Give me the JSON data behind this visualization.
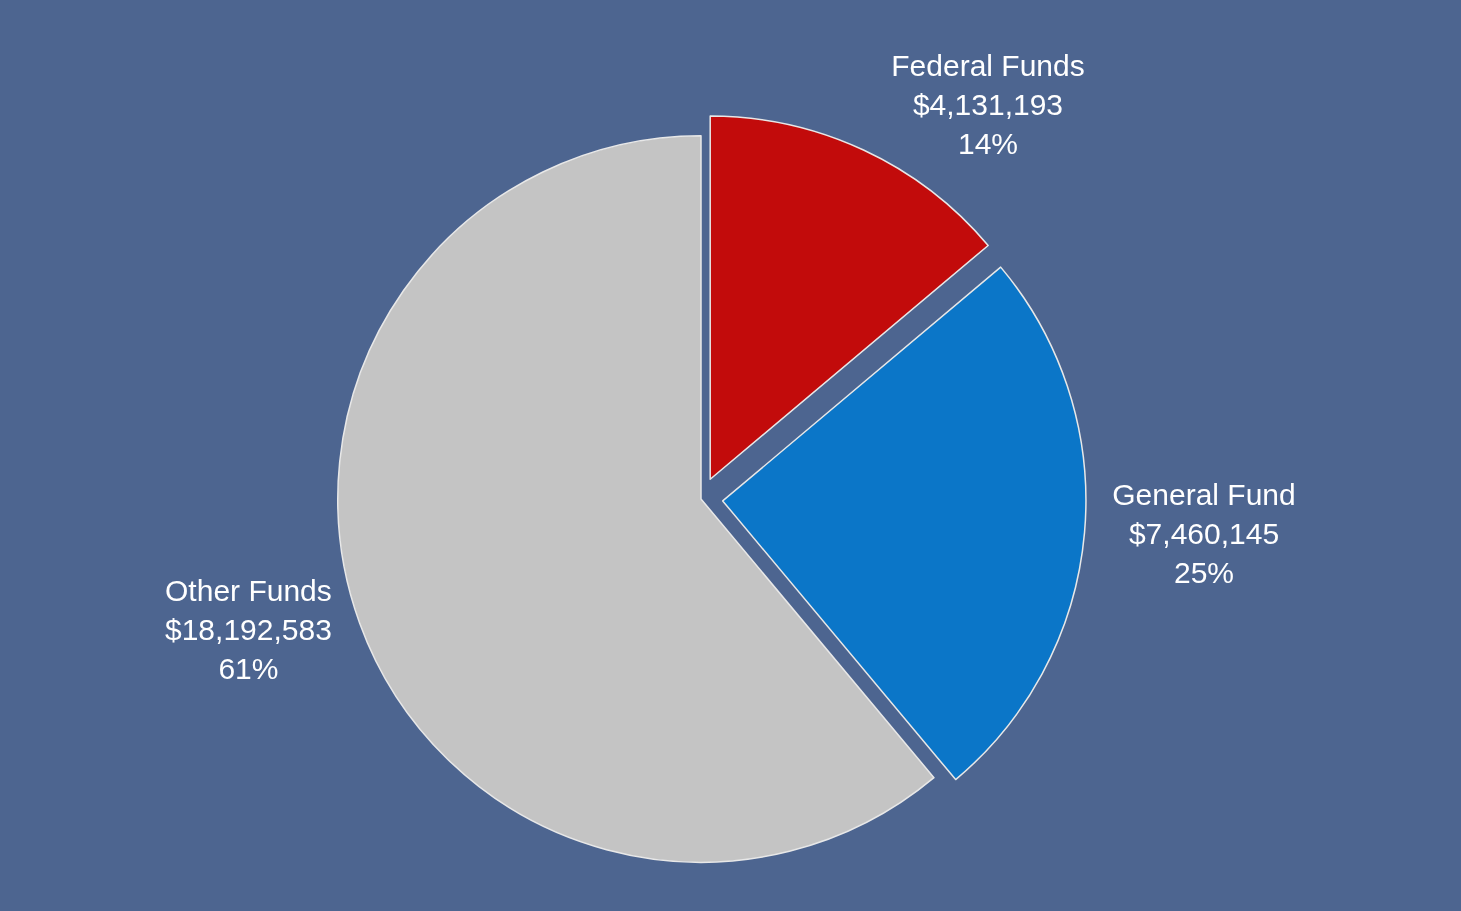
{
  "chart_data": {
    "type": "pie",
    "categories": [
      "Federal Funds",
      "General Fund",
      "Other Funds"
    ],
    "values": [
      4131193,
      7460145,
      18192583
    ],
    "value_labels": [
      "$4,131,193\n14%",
      "$7,460,145\n25%",
      "$18,192,583\n61%"
    ],
    "colors": [
      "#c20b0b",
      "#0b76c8",
      "#c4c4c4"
    ],
    "legend": false
  }
}
